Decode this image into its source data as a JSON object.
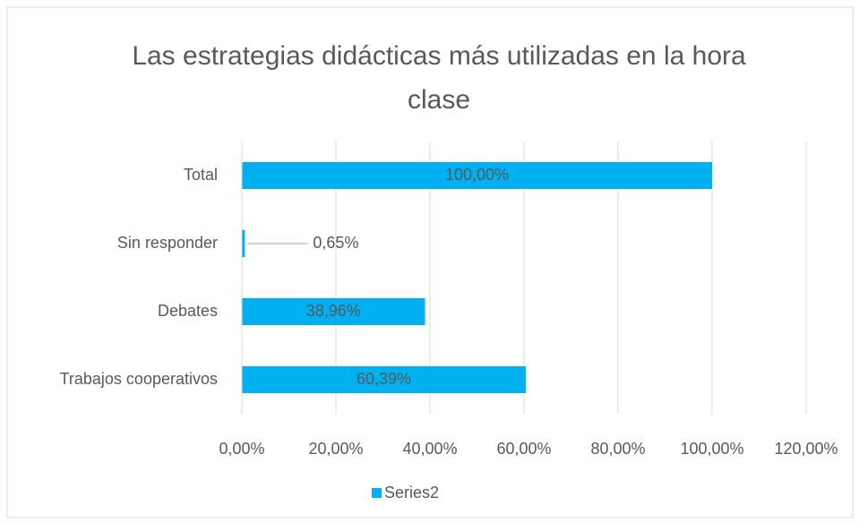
{
  "chart_data": {
    "type": "barh",
    "title": "Las estrategias didácticas más utilizadas en la hora clase",
    "categories": [
      "Total",
      "Sin responder",
      "Debates",
      "Trabajos cooperativos"
    ],
    "series": [
      {
        "name": "Series2",
        "color": "#00b0f0",
        "values": [
          100,
          0.65,
          38.96,
          60.39
        ],
        "value_labels": [
          "100,00%",
          "0,65%",
          "38,96%",
          "60,39%"
        ]
      }
    ],
    "xlim": [
      0,
      120
    ],
    "xticks": [
      {
        "value": 0,
        "label": "0,00%"
      },
      {
        "value": 20,
        "label": "20,00%"
      },
      {
        "value": 40,
        "label": "40,00%"
      },
      {
        "value": 60,
        "label": "60,00%"
      },
      {
        "value": 80,
        "label": "80,00%"
      },
      {
        "value": 100,
        "label": "100,00%"
      },
      {
        "value": 120,
        "label": "120,00%"
      }
    ],
    "grid": true,
    "legend": "bottom"
  }
}
